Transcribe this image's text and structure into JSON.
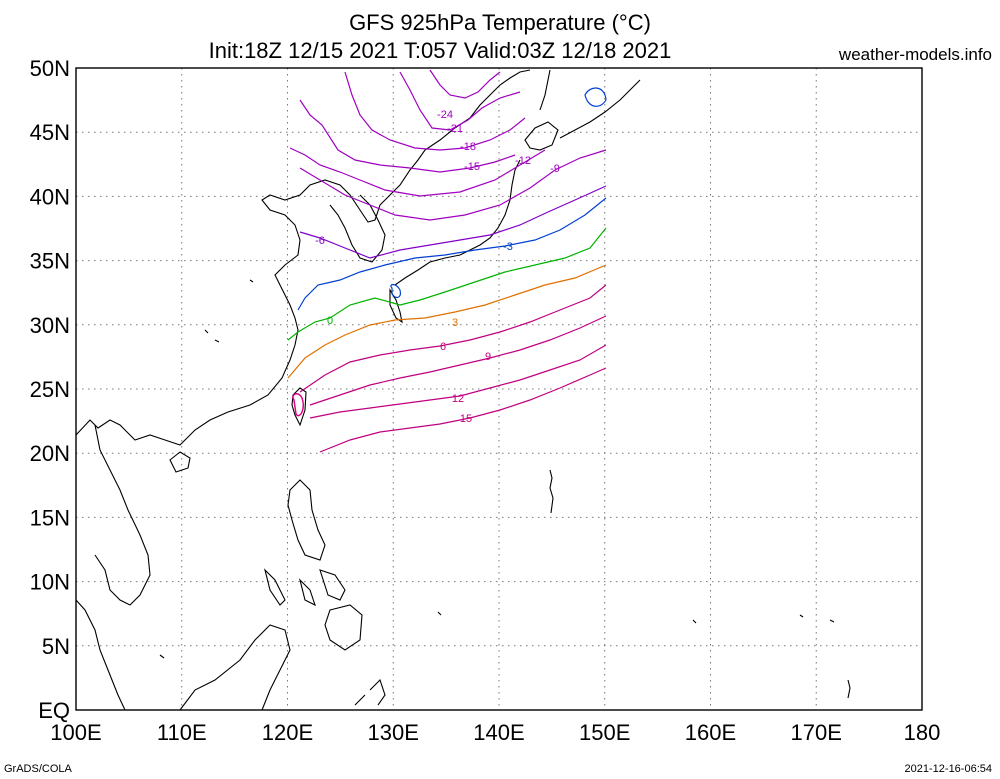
{
  "title": "GFS 925hPa Temperature (°C)",
  "subtitle": "Init:18Z 12/15 2021 T:057 Valid:03Z 12/18 2021",
  "brand": "weather-models.info",
  "footer_left": "GrADS/COLA",
  "footer_right": "2021-12-16-06:54",
  "map": {
    "lon_range": [
      100,
      180
    ],
    "lat_range": [
      0,
      50
    ],
    "lat_labels": [
      "50N",
      "45N",
      "40N",
      "35N",
      "30N",
      "25N",
      "20N",
      "15N",
      "10N",
      "5N",
      "EQ"
    ],
    "lon_labels": [
      "100E",
      "110E",
      "120E",
      "130E",
      "140E",
      "150E",
      "160E",
      "170E",
      "180"
    ],
    "gridlines": "dotted"
  },
  "contours": [
    {
      "level": "-24",
      "color": "#a000c0"
    },
    {
      "level": "-21",
      "color": "#a000c0"
    },
    {
      "level": "-18",
      "color": "#a000c0"
    },
    {
      "level": "-15",
      "color": "#a000c0"
    },
    {
      "level": "-12",
      "color": "#a000c0"
    },
    {
      "level": "-9",
      "color": "#a000c0"
    },
    {
      "level": "-6",
      "color": "#8000c8"
    },
    {
      "level": "-3",
      "color": "#0040d0"
    },
    {
      "level": "0",
      "color": "#00b400"
    },
    {
      "level": "3",
      "color": "#e07000"
    },
    {
      "level": "6",
      "color": "#c00080"
    },
    {
      "level": "9",
      "color": "#c00080"
    },
    {
      "level": "12",
      "color": "#c00080"
    },
    {
      "level": "15",
      "color": "#c00080"
    }
  ]
}
